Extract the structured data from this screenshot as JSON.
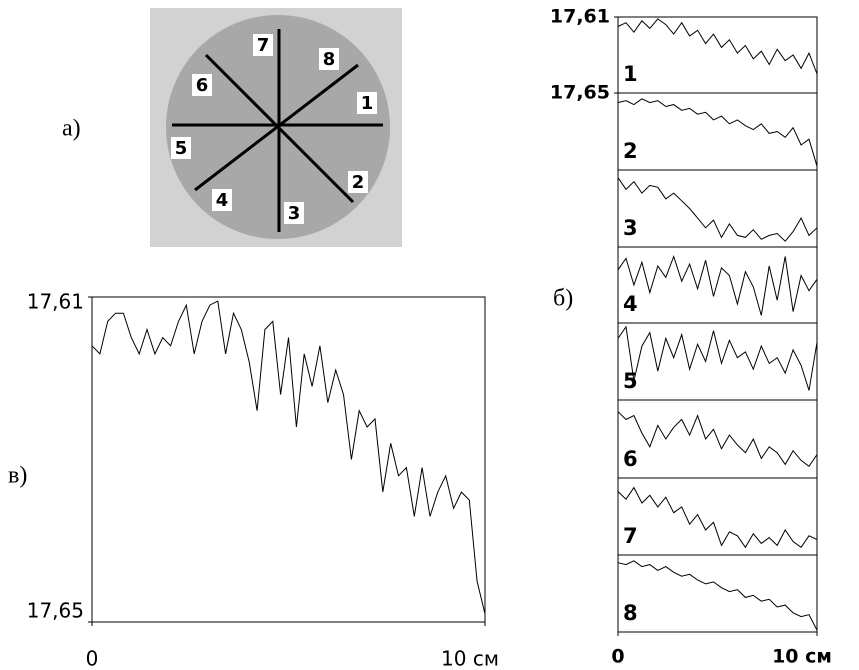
{
  "panel_labels": [
    "а)",
    "б)",
    "в)"
  ],
  "diagram": {
    "labels": [
      "1",
      "2",
      "3",
      "4",
      "5",
      "6",
      "7",
      "8"
    ]
  },
  "chart_data": [
    {
      "type": "line",
      "xlim": [
        0,
        10
      ],
      "ylim": [
        17.65,
        17.61
      ],
      "xticks": [
        0,
        {
          "value": 10,
          "label": "10 см"
        }
      ],
      "yticks": [
        {
          "value": 17.61,
          "label": "17,61"
        },
        {
          "value": 17.65,
          "label": "17,65"
        }
      ],
      "x": [
        0,
        0.2,
        0.4,
        0.6,
        0.8,
        1,
        1.2,
        1.4,
        1.6,
        1.8,
        2,
        2.2,
        2.4,
        2.6,
        2.8,
        3,
        3.2,
        3.4,
        3.6,
        3.8,
        4,
        4.2,
        4.4,
        4.6,
        4.8,
        5,
        5.2,
        5.4,
        5.6,
        5.8,
        6,
        6.2,
        6.4,
        6.6,
        6.8,
        7,
        7.2,
        7.4,
        7.6,
        7.8,
        8,
        8.2,
        8.4,
        8.6,
        8.8,
        9,
        9.2,
        9.4,
        9.6,
        9.8,
        10
      ],
      "values": [
        17.616,
        17.617,
        17.613,
        17.612,
        17.612,
        17.615,
        17.617,
        17.614,
        17.617,
        17.615,
        17.616,
        17.613,
        17.611,
        17.617,
        17.613,
        17.611,
        17.6105,
        17.617,
        17.612,
        17.614,
        17.618,
        17.624,
        17.614,
        17.613,
        17.622,
        17.615,
        17.626,
        17.617,
        17.621,
        17.616,
        17.623,
        17.619,
        17.622,
        17.63,
        17.624,
        17.626,
        17.625,
        17.634,
        17.628,
        17.632,
        17.631,
        17.637,
        17.631,
        17.637,
        17.634,
        17.632,
        17.636,
        17.634,
        17.635,
        17.645,
        17.649
      ]
    },
    {
      "type": "line",
      "label": "1",
      "xlim": [
        0,
        10
      ],
      "ylim": [
        17.65,
        17.61
      ],
      "yticks": [
        {
          "value": 17.61,
          "label": "17,61"
        },
        {
          "value": 17.65,
          "label": "17,65"
        }
      ],
      "x": [
        0,
        0.4,
        0.8,
        1.2,
        1.6,
        2,
        2.4,
        2.8,
        3.2,
        3.6,
        4,
        4.4,
        4.8,
        5.2,
        5.6,
        6,
        6.4,
        6.8,
        7.2,
        7.6,
        8,
        8.4,
        8.8,
        9.2,
        9.6,
        10
      ],
      "values": [
        17.615,
        17.613,
        17.618,
        17.612,
        17.616,
        17.611,
        17.614,
        17.619,
        17.613,
        17.62,
        17.617,
        17.624,
        17.619,
        17.626,
        17.622,
        17.629,
        17.625,
        17.632,
        17.628,
        17.635,
        17.627,
        17.633,
        17.63,
        17.637,
        17.629,
        17.64
      ]
    },
    {
      "type": "line",
      "label": "2",
      "xlim": [
        0,
        10
      ],
      "ylim": [
        17.65,
        17.61
      ],
      "x": [
        0,
        0.4,
        0.8,
        1.2,
        1.6,
        2,
        2.4,
        2.8,
        3.2,
        3.6,
        4,
        4.4,
        4.8,
        5.2,
        5.6,
        6,
        6.4,
        6.8,
        7.2,
        7.6,
        8,
        8.4,
        8.8,
        9.2,
        9.6,
        10
      ],
      "values": [
        17.615,
        17.614,
        17.616,
        17.613,
        17.615,
        17.614,
        17.617,
        17.616,
        17.619,
        17.618,
        17.621,
        17.62,
        17.624,
        17.622,
        17.626,
        17.624,
        17.627,
        17.629,
        17.626,
        17.631,
        17.63,
        17.633,
        17.628,
        17.637,
        17.634,
        17.648
      ]
    },
    {
      "type": "line",
      "label": "3",
      "xlim": [
        0,
        10
      ],
      "ylim": [
        17.65,
        17.61
      ],
      "x": [
        0,
        0.4,
        0.8,
        1.2,
        1.6,
        2,
        2.4,
        2.8,
        3.2,
        3.6,
        4,
        4.4,
        4.8,
        5.2,
        5.6,
        6,
        6.4,
        6.8,
        7.2,
        7.6,
        8,
        8.4,
        8.8,
        9.2,
        9.6,
        10
      ],
      "values": [
        17.614,
        17.62,
        17.616,
        17.622,
        17.618,
        17.619,
        17.625,
        17.622,
        17.626,
        17.63,
        17.635,
        17.64,
        17.636,
        17.645,
        17.638,
        17.644,
        17.645,
        17.641,
        17.646,
        17.644,
        17.643,
        17.647,
        17.642,
        17.635,
        17.644,
        17.64
      ]
    },
    {
      "type": "line",
      "label": "4",
      "xlim": [
        0,
        10
      ],
      "ylim": [
        17.65,
        17.61
      ],
      "x": [
        0,
        0.4,
        0.8,
        1.2,
        1.6,
        2,
        2.4,
        2.8,
        3.2,
        3.6,
        4,
        4.4,
        4.8,
        5.2,
        5.6,
        6,
        6.4,
        6.8,
        7.2,
        7.6,
        8,
        8.4,
        8.8,
        9.2,
        9.6,
        10
      ],
      "values": [
        17.622,
        17.616,
        17.63,
        17.618,
        17.634,
        17.62,
        17.626,
        17.615,
        17.628,
        17.619,
        17.632,
        17.617,
        17.636,
        17.621,
        17.625,
        17.64,
        17.623,
        17.631,
        17.646,
        17.62,
        17.638,
        17.615,
        17.644,
        17.625,
        17.633,
        17.627
      ]
    },
    {
      "type": "line",
      "label": "5",
      "xlim": [
        0,
        10
      ],
      "ylim": [
        17.65,
        17.61
      ],
      "x": [
        0,
        0.4,
        0.8,
        1.2,
        1.6,
        2,
        2.4,
        2.8,
        3.2,
        3.6,
        4,
        4.4,
        4.8,
        5.2,
        5.6,
        6,
        6.4,
        6.8,
        7.2,
        7.6,
        8,
        8.4,
        8.8,
        9.2,
        9.6,
        10
      ],
      "values": [
        17.618,
        17.612,
        17.64,
        17.622,
        17.615,
        17.635,
        17.618,
        17.628,
        17.616,
        17.634,
        17.621,
        17.63,
        17.614,
        17.631,
        17.619,
        17.628,
        17.625,
        17.634,
        17.622,
        17.631,
        17.628,
        17.636,
        17.624,
        17.632,
        17.645,
        17.62
      ]
    },
    {
      "type": "line",
      "label": "6",
      "xlim": [
        0,
        10
      ],
      "ylim": [
        17.65,
        17.61
      ],
      "x": [
        0,
        0.4,
        0.8,
        1.2,
        1.6,
        2,
        2.4,
        2.8,
        3.2,
        3.6,
        4,
        4.4,
        4.8,
        5.2,
        5.6,
        6,
        6.4,
        6.8,
        7.2,
        7.6,
        8,
        8.4,
        8.8,
        9.2,
        9.6,
        10
      ],
      "values": [
        17.616,
        17.62,
        17.618,
        17.627,
        17.634,
        17.623,
        17.63,
        17.624,
        17.62,
        17.628,
        17.618,
        17.63,
        17.625,
        17.635,
        17.628,
        17.633,
        17.637,
        17.63,
        17.64,
        17.634,
        17.637,
        17.643,
        17.636,
        17.641,
        17.644,
        17.638
      ]
    },
    {
      "type": "line",
      "label": "7",
      "xlim": [
        0,
        10
      ],
      "ylim": [
        17.65,
        17.61
      ],
      "x": [
        0,
        0.4,
        0.8,
        1.2,
        1.6,
        2,
        2.4,
        2.8,
        3.2,
        3.6,
        4,
        4.4,
        4.8,
        5.2,
        5.6,
        6,
        6.4,
        6.8,
        7.2,
        7.6,
        8,
        8.4,
        8.8,
        9.2,
        9.6,
        10
      ],
      "values": [
        17.617,
        17.621,
        17.615,
        17.623,
        17.619,
        17.625,
        17.62,
        17.628,
        17.625,
        17.634,
        17.629,
        17.637,
        17.633,
        17.645,
        17.638,
        17.64,
        17.646,
        17.639,
        17.644,
        17.641,
        17.645,
        17.637,
        17.643,
        17.646,
        17.64,
        17.642
      ]
    },
    {
      "type": "line",
      "label": "8",
      "xlim": [
        0,
        10
      ],
      "ylim": [
        17.65,
        17.61
      ],
      "xticks": [
        0,
        {
          "value": 10,
          "label": "10 см"
        }
      ],
      "x": [
        0,
        0.4,
        0.8,
        1.2,
        1.6,
        2,
        2.4,
        2.8,
        3.2,
        3.6,
        4,
        4.4,
        4.8,
        5.2,
        5.6,
        6,
        6.4,
        6.8,
        7.2,
        7.6,
        8,
        8.4,
        8.8,
        9.2,
        9.6,
        10
      ],
      "values": [
        17.614,
        17.615,
        17.613,
        17.616,
        17.615,
        17.618,
        17.616,
        17.619,
        17.621,
        17.62,
        17.623,
        17.625,
        17.624,
        17.627,
        17.629,
        17.628,
        17.632,
        17.631,
        17.634,
        17.633,
        17.637,
        17.636,
        17.64,
        17.642,
        17.641,
        17.649
      ]
    }
  ]
}
